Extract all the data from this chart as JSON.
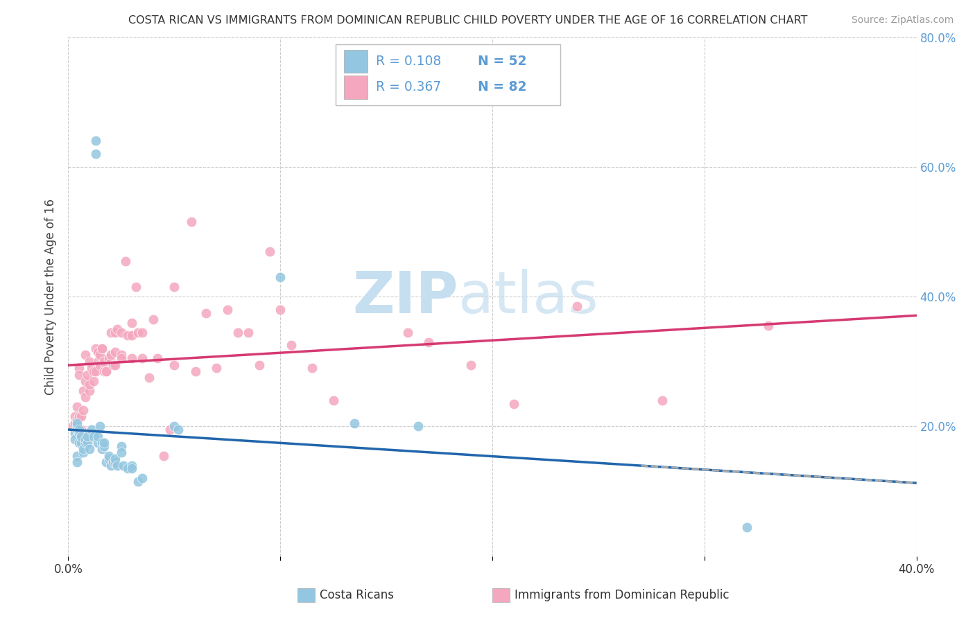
{
  "title": "COSTA RICAN VS IMMIGRANTS FROM DOMINICAN REPUBLIC CHILD POVERTY UNDER THE AGE OF 16 CORRELATION CHART",
  "source": "Source: ZipAtlas.com",
  "ylabel": "Child Poverty Under the Age of 16",
  "xlim": [
    0.0,
    0.4
  ],
  "ylim": [
    0.0,
    0.8
  ],
  "blue_R": "R = 0.108",
  "blue_N": "N = 52",
  "pink_R": "R = 0.367",
  "pink_N": "N = 82",
  "blue_color": "#93c6e0",
  "pink_color": "#f4a7be",
  "blue_line_color": "#2166ac",
  "pink_line_color": "#d63a72",
  "dash_line_color": "#aaaaaa",
  "legend_label_blue": "Costa Ricans",
  "legend_label_pink": "Immigrants from Dominican Republic",
  "tick_label_color": "#5b9bd5",
  "grid_color": "#cccccc",
  "watermark_zip_color": "#c5def0",
  "watermark_atlas_color": "#c5def0",
  "background_color": "#ffffff",
  "blue_scatter": [
    [
      0.003,
      0.19
    ],
    [
      0.003,
      0.18
    ],
    [
      0.004,
      0.2
    ],
    [
      0.004,
      0.155
    ],
    [
      0.004,
      0.195
    ],
    [
      0.004,
      0.205
    ],
    [
      0.004,
      0.145
    ],
    [
      0.005,
      0.175
    ],
    [
      0.005,
      0.19
    ],
    [
      0.005,
      0.195
    ],
    [
      0.006,
      0.175
    ],
    [
      0.006,
      0.185
    ],
    [
      0.007,
      0.16
    ],
    [
      0.007,
      0.165
    ],
    [
      0.008,
      0.175
    ],
    [
      0.008,
      0.18
    ],
    [
      0.009,
      0.175
    ],
    [
      0.009,
      0.185
    ],
    [
      0.01,
      0.165
    ],
    [
      0.011,
      0.195
    ],
    [
      0.012,
      0.185
    ],
    [
      0.013,
      0.64
    ],
    [
      0.013,
      0.62
    ],
    [
      0.014,
      0.175
    ],
    [
      0.014,
      0.185
    ],
    [
      0.015,
      0.2
    ],
    [
      0.016,
      0.175
    ],
    [
      0.016,
      0.165
    ],
    [
      0.017,
      0.17
    ],
    [
      0.017,
      0.175
    ],
    [
      0.018,
      0.145
    ],
    [
      0.019,
      0.15
    ],
    [
      0.019,
      0.155
    ],
    [
      0.02,
      0.14
    ],
    [
      0.021,
      0.145
    ],
    [
      0.022,
      0.145
    ],
    [
      0.022,
      0.15
    ],
    [
      0.023,
      0.14
    ],
    [
      0.025,
      0.17
    ],
    [
      0.025,
      0.16
    ],
    [
      0.026,
      0.14
    ],
    [
      0.028,
      0.135
    ],
    [
      0.03,
      0.14
    ],
    [
      0.03,
      0.135
    ],
    [
      0.033,
      0.115
    ],
    [
      0.035,
      0.12
    ],
    [
      0.05,
      0.2
    ],
    [
      0.052,
      0.195
    ],
    [
      0.1,
      0.43
    ],
    [
      0.135,
      0.205
    ],
    [
      0.165,
      0.2
    ],
    [
      0.32,
      0.045
    ]
  ],
  "pink_scatter": [
    [
      0.002,
      0.2
    ],
    [
      0.003,
      0.215
    ],
    [
      0.003,
      0.205
    ],
    [
      0.004,
      0.23
    ],
    [
      0.004,
      0.21
    ],
    [
      0.005,
      0.215
    ],
    [
      0.005,
      0.29
    ],
    [
      0.005,
      0.28
    ],
    [
      0.006,
      0.195
    ],
    [
      0.006,
      0.215
    ],
    [
      0.007,
      0.255
    ],
    [
      0.007,
      0.225
    ],
    [
      0.008,
      0.27
    ],
    [
      0.008,
      0.245
    ],
    [
      0.008,
      0.31
    ],
    [
      0.009,
      0.28
    ],
    [
      0.01,
      0.255
    ],
    [
      0.01,
      0.3
    ],
    [
      0.01,
      0.265
    ],
    [
      0.011,
      0.29
    ],
    [
      0.012,
      0.27
    ],
    [
      0.012,
      0.285
    ],
    [
      0.013,
      0.285
    ],
    [
      0.013,
      0.32
    ],
    [
      0.014,
      0.3
    ],
    [
      0.014,
      0.315
    ],
    [
      0.015,
      0.31
    ],
    [
      0.015,
      0.295
    ],
    [
      0.016,
      0.32
    ],
    [
      0.016,
      0.32
    ],
    [
      0.017,
      0.285
    ],
    [
      0.017,
      0.3
    ],
    [
      0.018,
      0.285
    ],
    [
      0.018,
      0.285
    ],
    [
      0.019,
      0.305
    ],
    [
      0.02,
      0.3
    ],
    [
      0.02,
      0.31
    ],
    [
      0.02,
      0.345
    ],
    [
      0.021,
      0.295
    ],
    [
      0.022,
      0.315
    ],
    [
      0.022,
      0.295
    ],
    [
      0.022,
      0.345
    ],
    [
      0.023,
      0.35
    ],
    [
      0.025,
      0.31
    ],
    [
      0.025,
      0.305
    ],
    [
      0.025,
      0.345
    ],
    [
      0.027,
      0.455
    ],
    [
      0.028,
      0.34
    ],
    [
      0.03,
      0.305
    ],
    [
      0.03,
      0.34
    ],
    [
      0.03,
      0.36
    ],
    [
      0.032,
      0.415
    ],
    [
      0.033,
      0.345
    ],
    [
      0.035,
      0.305
    ],
    [
      0.035,
      0.345
    ],
    [
      0.038,
      0.275
    ],
    [
      0.04,
      0.365
    ],
    [
      0.042,
      0.305
    ],
    [
      0.045,
      0.155
    ],
    [
      0.048,
      0.195
    ],
    [
      0.05,
      0.415
    ],
    [
      0.05,
      0.295
    ],
    [
      0.058,
      0.515
    ],
    [
      0.06,
      0.285
    ],
    [
      0.065,
      0.375
    ],
    [
      0.07,
      0.29
    ],
    [
      0.075,
      0.38
    ],
    [
      0.08,
      0.345
    ],
    [
      0.085,
      0.345
    ],
    [
      0.09,
      0.295
    ],
    [
      0.095,
      0.47
    ],
    [
      0.1,
      0.38
    ],
    [
      0.105,
      0.325
    ],
    [
      0.115,
      0.29
    ],
    [
      0.125,
      0.24
    ],
    [
      0.16,
      0.345
    ],
    [
      0.17,
      0.33
    ],
    [
      0.19,
      0.295
    ],
    [
      0.21,
      0.235
    ],
    [
      0.24,
      0.385
    ],
    [
      0.28,
      0.24
    ],
    [
      0.33,
      0.355
    ]
  ]
}
